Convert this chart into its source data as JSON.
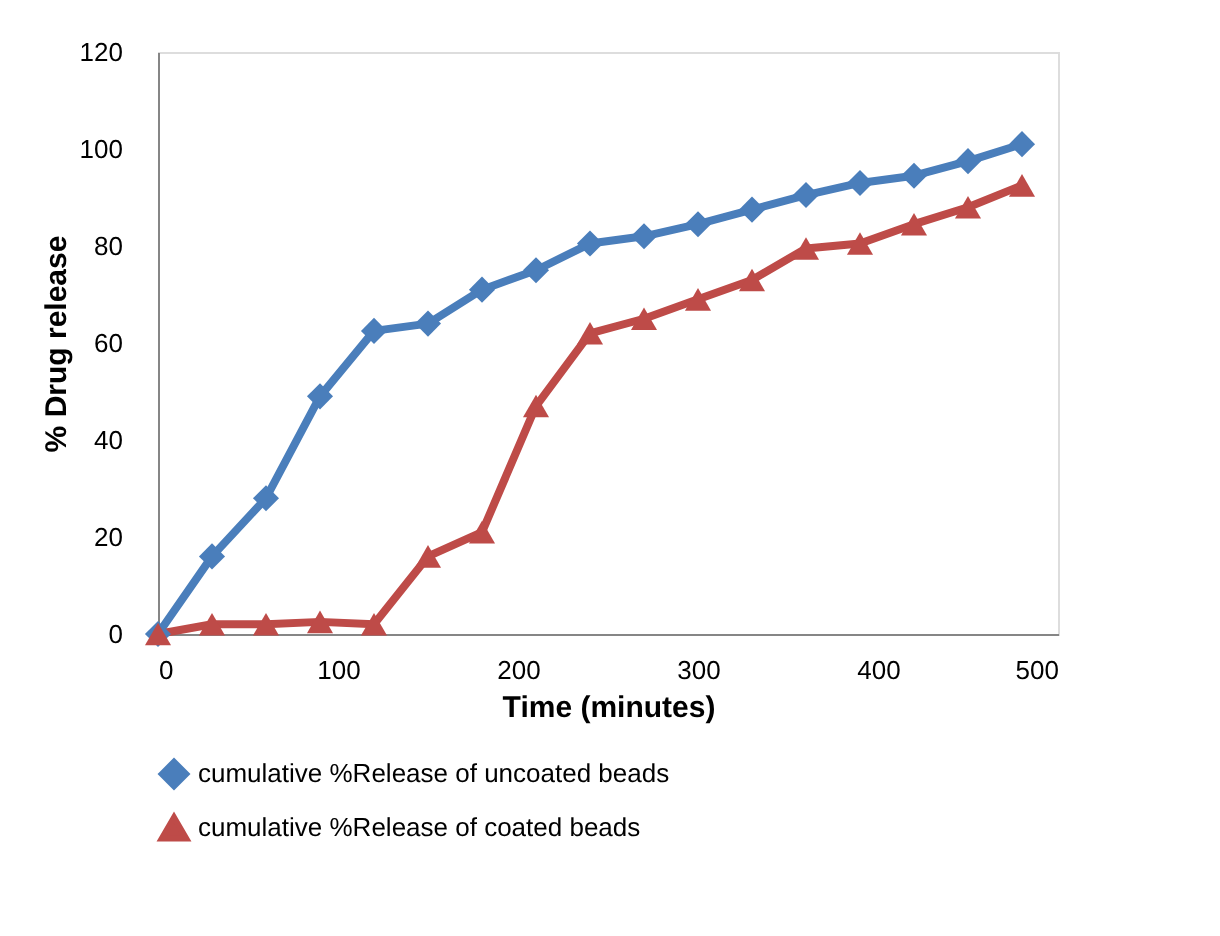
{
  "chart_data": {
    "type": "line",
    "xlabel": "Time (minutes)",
    "ylabel": "% Drug release",
    "x": [
      0,
      30,
      60,
      90,
      120,
      150,
      180,
      210,
      240,
      270,
      300,
      330,
      360,
      390,
      420,
      450,
      480
    ],
    "series": [
      {
        "name": "cumulative %Release of uncoated beads",
        "color": "#4a7ebb",
        "marker": "diamond",
        "values": [
          0,
          16,
          28,
          49,
          62.5,
          64,
          71,
          75,
          80.5,
          82,
          84.5,
          87.5,
          90.5,
          93,
          94.5,
          97.5,
          101
        ]
      },
      {
        "name": "cumulative %Release of coated beads",
        "color": "#be4b48",
        "marker": "triangle",
        "values": [
          0,
          2,
          2,
          2.5,
          2,
          16,
          21,
          47,
          62,
          65,
          69,
          73,
          79.5,
          80.5,
          84.5,
          88,
          92.5
        ]
      }
    ],
    "xlim": [
      0,
      500
    ],
    "xticks": [
      0,
      100,
      200,
      300,
      400,
      500
    ],
    "ylim": [
      0,
      120
    ],
    "yticks": [
      0,
      20,
      40,
      60,
      80,
      100,
      120
    ],
    "grid": false,
    "legend": "bottom",
    "line_style": "solid"
  }
}
